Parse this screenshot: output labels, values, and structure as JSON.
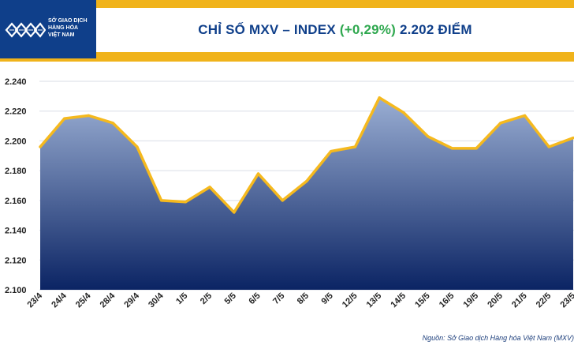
{
  "header": {
    "logo_lines": [
      "SỞ GIAO DỊCH",
      "HÀNG HÓA",
      "VIỆT NAM"
    ],
    "title_main": "CHỈ SỐ MXV – INDEX",
    "title_change": "(+0,29%)",
    "title_value": "2.202 ĐIỂM"
  },
  "source": "Nguồn: Sở Giao dịch Hàng hóa Việt Nam (MXV)",
  "colors": {
    "header": "#f0b31b",
    "logo_bg": "#0f3f8a",
    "title_text": "#0f3f8a",
    "change_text": "#2fa84f",
    "line": "#f5b91e",
    "area_top": "#9aaed3",
    "area_bottom": "#0b2464",
    "grid": "#d9dde6"
  },
  "chart_data": {
    "type": "area",
    "title": "CHỈ SỐ MXV – INDEX (+0,29%) 2.202 ĐIỂM",
    "categories": [
      "23/4",
      "24/4",
      "25/4",
      "28/4",
      "29/4",
      "30/4",
      "1/5",
      "2/5",
      "5/5",
      "6/5",
      "7/5",
      "8/5",
      "9/5",
      "12/5",
      "13/5",
      "14/5",
      "15/5",
      "16/5",
      "19/5",
      "20/5",
      "21/5",
      "22/5",
      "23/5"
    ],
    "series": [
      {
        "values": [
          2196,
          2215,
          2217,
          2212,
          2196,
          2160,
          2159,
          2169,
          2152,
          2178,
          2160,
          2173,
          2193,
          2196,
          2229,
          2219,
          2203,
          2195,
          2195,
          2212,
          2217,
          2196,
          2202
        ]
      }
    ],
    "y_ticks": [
      "2.100",
      "2.120",
      "2.140",
      "2.160",
      "2.180",
      "2.200",
      "2.220",
      "2.240"
    ],
    "ylim": [
      2100,
      2240
    ],
    "grid": true,
    "legend": "none"
  }
}
